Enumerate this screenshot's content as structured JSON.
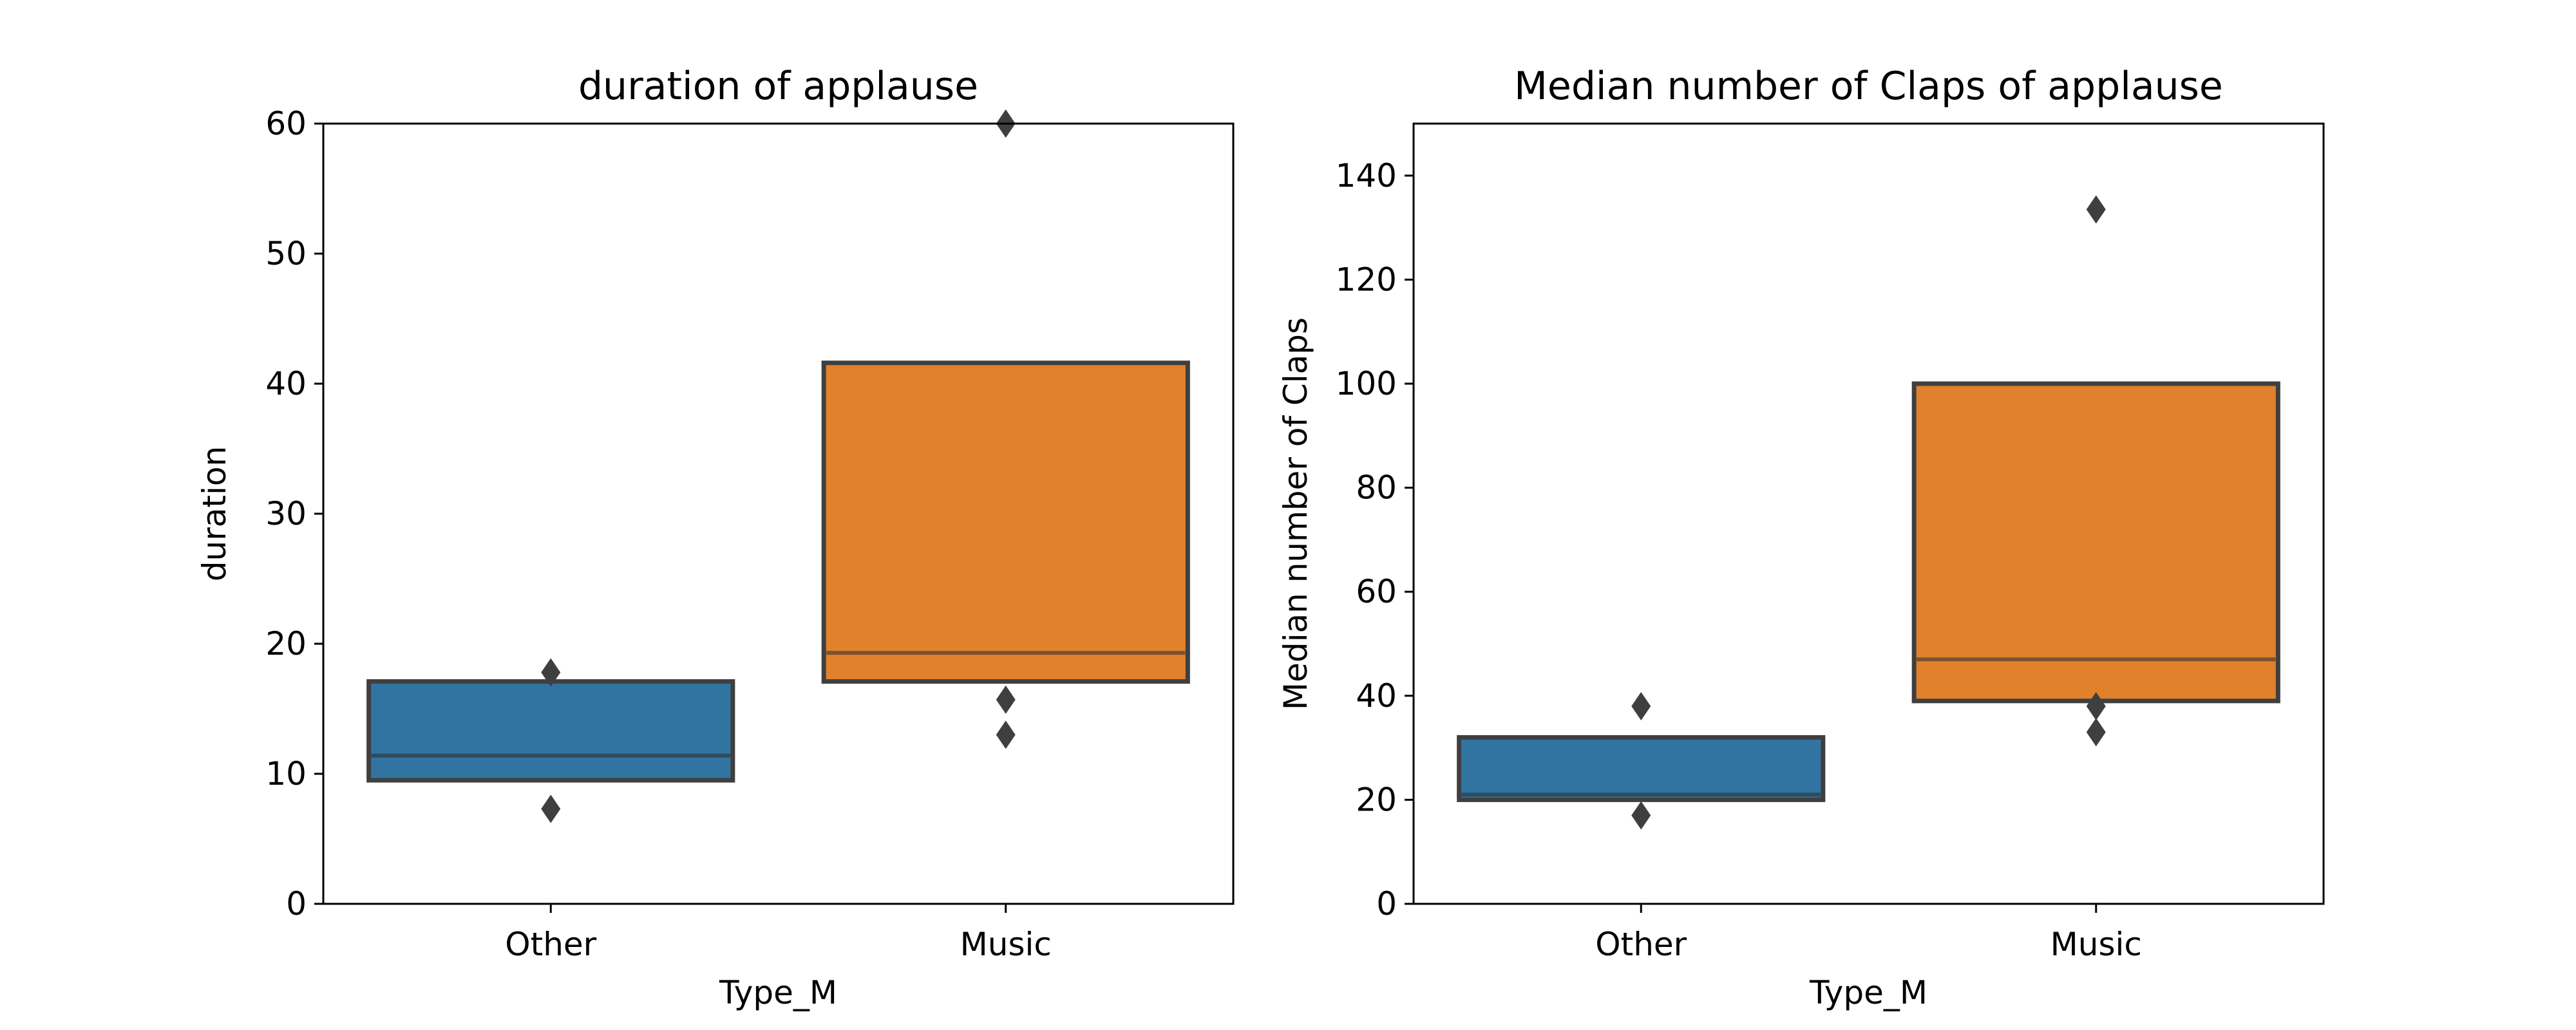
{
  "chart_data": [
    {
      "type": "boxen",
      "title": "duration of applause",
      "xlabel": "Type_M",
      "ylabel": "duration",
      "ylim": [
        0,
        60
      ],
      "yticks": [
        0,
        10,
        20,
        30,
        40,
        50,
        60
      ],
      "categories": [
        "Other",
        "Music"
      ],
      "colors": [
        "#3274a1",
        "#e1812c"
      ],
      "medianColors": [
        "#2f4b5f",
        "#7a5231"
      ],
      "boxes": [
        {
          "category": "Other",
          "lower": 9.5,
          "upper": 17.1,
          "median": 11.4,
          "outliers": [
            7.3,
            17.8
          ]
        },
        {
          "category": "Music",
          "lower": 17.1,
          "upper": 41.6,
          "median": 19.3,
          "outliers": [
            13.0,
            15.7,
            60.0
          ]
        }
      ]
    },
    {
      "type": "boxen",
      "title": "Median number of Claps of applause",
      "xlabel": "Type_M",
      "ylabel": "Median number of Claps",
      "ylim": [
        0,
        150
      ],
      "yticks": [
        0,
        20,
        40,
        60,
        80,
        100,
        120,
        140
      ],
      "categories": [
        "Other",
        "Music"
      ],
      "colors": [
        "#3274a1",
        "#e1812c"
      ],
      "medianColors": [
        "#2f4b5f",
        "#7a5231"
      ],
      "boxes": [
        {
          "category": "Other",
          "lower": 20,
          "upper": 32,
          "median": 21,
          "outliers": [
            17,
            38
          ]
        },
        {
          "category": "Music",
          "lower": 39,
          "upper": 100,
          "median": 47,
          "outliers": [
            33,
            38,
            133.5
          ]
        }
      ]
    }
  ]
}
